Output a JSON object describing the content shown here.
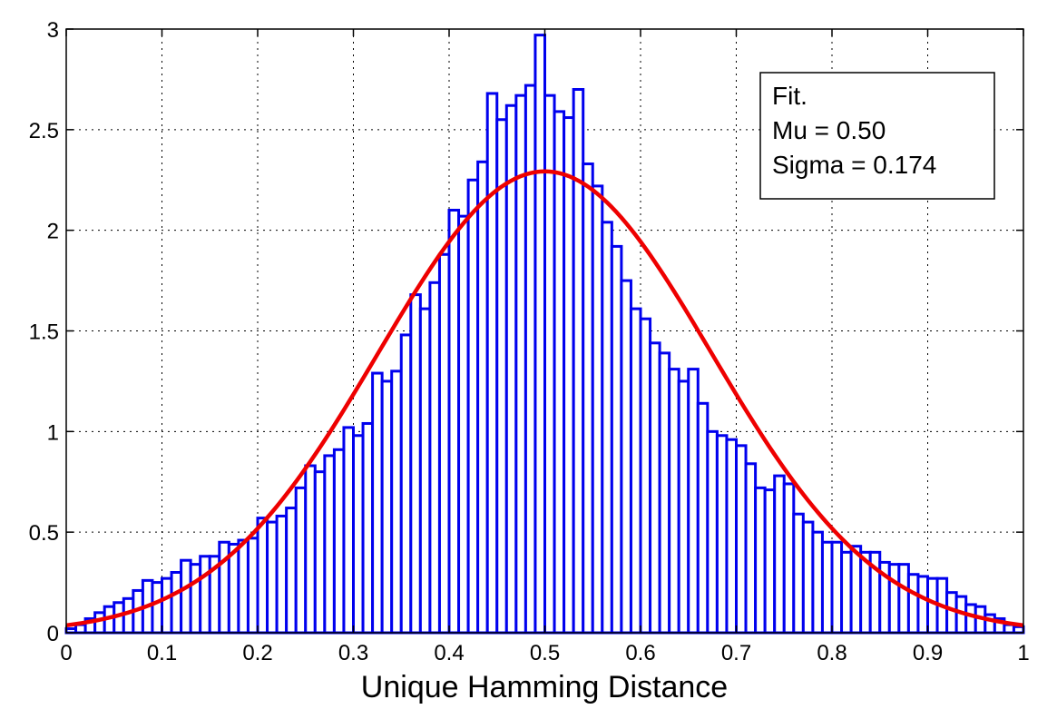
{
  "chart_data": {
    "type": "bar",
    "title": "",
    "xlabel": "Unique Hamming Distance",
    "ylabel": "",
    "xlim": [
      0,
      1
    ],
    "ylim": [
      0,
      3
    ],
    "grid": true,
    "x_ticks": [
      "0",
      "0.1",
      "0.2",
      "0.3",
      "0.4",
      "0.5",
      "0.6",
      "0.7",
      "0.8",
      "0.9",
      "1"
    ],
    "y_ticks": [
      "0",
      "0.5",
      "1",
      "1.5",
      "2",
      "2.5",
      "3"
    ],
    "bin_width": 0.01,
    "bar_color": "#0000ee",
    "series": [
      {
        "type": "histogram",
        "values": [
          0.02,
          0.04,
          0.07,
          0.1,
          0.13,
          0.15,
          0.17,
          0.21,
          0.26,
          0.25,
          0.27,
          0.3,
          0.36,
          0.34,
          0.38,
          0.38,
          0.45,
          0.44,
          0.46,
          0.47,
          0.57,
          0.55,
          0.58,
          0.62,
          0.72,
          0.83,
          0.8,
          0.88,
          0.91,
          1.02,
          0.98,
          1.04,
          1.29,
          1.25,
          1.3,
          1.48,
          1.68,
          1.61,
          1.74,
          1.88,
          2.1,
          2.07,
          2.25,
          2.34,
          2.68,
          2.55,
          2.62,
          2.67,
          2.72,
          2.97,
          2.67,
          2.59,
          2.56,
          2.7,
          2.33,
          2.22,
          2.04,
          1.92,
          1.75,
          1.61,
          1.56,
          1.44,
          1.39,
          1.31,
          1.25,
          1.31,
          1.14,
          1.0,
          0.98,
          0.96,
          0.93,
          0.84,
          0.72,
          0.71,
          0.78,
          0.74,
          0.59,
          0.55,
          0.5,
          0.45,
          0.45,
          0.4,
          0.43,
          0.4,
          0.4,
          0.35,
          0.34,
          0.34,
          0.29,
          0.28,
          0.27,
          0.27,
          0.2,
          0.18,
          0.14,
          0.13,
          0.09,
          0.07,
          0.04,
          0.03
        ]
      },
      {
        "type": "normal_fit",
        "color": "#ee0000",
        "mu": 0.5,
        "sigma": 0.174
      }
    ],
    "legend": {
      "position": "top-right",
      "lines": [
        "Fit.",
        "Mu = 0.50",
        "Sigma = 0.174"
      ]
    }
  }
}
